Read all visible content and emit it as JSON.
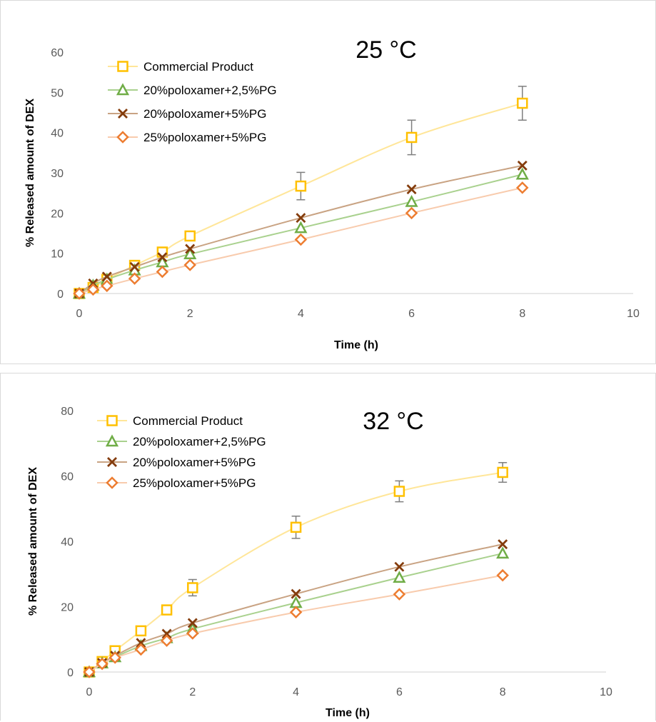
{
  "chart_data": [
    {
      "type": "line",
      "title": "25 °C",
      "xlabel": "Time (h)",
      "ylabel": "% Released amount of DEX",
      "xlim": [
        0,
        10
      ],
      "ylim": [
        0,
        60
      ],
      "x_ticks": [
        "0",
        "2",
        "4",
        "6",
        "8",
        "10"
      ],
      "y_ticks": [
        "0",
        "10",
        "20",
        "30",
        "40",
        "50",
        "60"
      ],
      "legend_position": "top-left",
      "grid": false,
      "series": [
        {
          "name": "Commercial Product",
          "marker": "square",
          "color": "#FFC000",
          "line_color": "#FFE699",
          "x": [
            0,
            0.25,
            0.5,
            1,
            1.5,
            2,
            4,
            6,
            8
          ],
          "y": [
            0,
            1.5,
            3.5,
            7,
            10.3,
            14.3,
            26.7,
            38.8,
            47.3
          ],
          "error": [
            0,
            0,
            0,
            0,
            0,
            0.5,
            3.4,
            4.3,
            4.2
          ]
        },
        {
          "name": "20%poloxamer+2,5%PG",
          "marker": "triangle",
          "color": "#70AD47",
          "line_color": "#A9D18E",
          "x": [
            0,
            0.25,
            0.5,
            1,
            1.5,
            2,
            4,
            6,
            8
          ],
          "y": [
            0,
            2,
            3.5,
            5.8,
            7.8,
            9.8,
            16.3,
            22.8,
            29.6
          ],
          "error": [
            0,
            0,
            0,
            0,
            0,
            0,
            0,
            0,
            0
          ]
        },
        {
          "name": "20%poloxamer+5%PG",
          "marker": "x",
          "color": "#843C0C",
          "line_color": "#C9A383",
          "x": [
            0,
            0.25,
            0.5,
            1,
            1.5,
            2,
            4,
            6,
            8
          ],
          "y": [
            0,
            2.5,
            4.2,
            6.6,
            9,
            11.1,
            18.8,
            25.9,
            31.8
          ],
          "error": [
            0,
            0,
            0,
            0,
            0,
            0,
            0,
            0,
            0
          ]
        },
        {
          "name": "25%poloxamer+5%PG",
          "marker": "diamond",
          "color": "#ED7D31",
          "line_color": "#F8CBAD",
          "x": [
            0,
            0.25,
            0.5,
            1,
            1.5,
            2,
            4,
            6,
            8
          ],
          "y": [
            0,
            1,
            1.9,
            3.7,
            5.4,
            7.1,
            13.4,
            20,
            26.3
          ],
          "error": [
            0,
            0,
            0,
            0,
            0,
            0,
            0,
            0,
            0
          ]
        }
      ]
    },
    {
      "type": "line",
      "title": "32 °C",
      "xlabel": "Time (h)",
      "ylabel": "% Released amount of DEX",
      "xlim": [
        0,
        10
      ],
      "ylim": [
        0,
        80
      ],
      "x_ticks": [
        "0",
        "2",
        "4",
        "6",
        "8",
        "10"
      ],
      "y_ticks": [
        "0",
        "20",
        "40",
        "60",
        "80"
      ],
      "legend_position": "top-left",
      "grid": false,
      "series": [
        {
          "name": "Commercial Product",
          "marker": "square",
          "color": "#FFC000",
          "line_color": "#FFE699",
          "x": [
            0,
            0.25,
            0.5,
            1,
            1.5,
            2,
            4,
            6,
            8
          ],
          "y": [
            0,
            3.2,
            6.5,
            12.6,
            19,
            25.8,
            44.3,
            55.3,
            61.1
          ],
          "error": [
            0,
            0,
            0,
            0,
            0,
            2.5,
            3.4,
            3.2,
            3
          ]
        },
        {
          "name": "20%poloxamer+2,5%PG",
          "marker": "triangle",
          "color": "#70AD47",
          "line_color": "#A9D18E",
          "x": [
            0,
            0.25,
            0.5,
            1,
            1.5,
            2,
            4,
            6,
            8
          ],
          "y": [
            0,
            2.7,
            4.6,
            8,
            10.4,
            13.2,
            21.2,
            28.9,
            36.3
          ],
          "error": [
            0,
            0,
            0,
            0,
            0,
            0,
            0,
            0,
            0
          ]
        },
        {
          "name": "20%poloxamer+5%PG",
          "marker": "x",
          "color": "#843C0C",
          "line_color": "#C9A383",
          "x": [
            0,
            0.25,
            0.5,
            1,
            1.5,
            2,
            4,
            6,
            8
          ],
          "y": [
            0,
            2.8,
            5,
            8.9,
            11.7,
            15,
            23.9,
            32.2,
            39.1
          ],
          "error": [
            0,
            0,
            0,
            0,
            0,
            0,
            0,
            0,
            0
          ]
        },
        {
          "name": "25%poloxamer+5%PG",
          "marker": "diamond",
          "color": "#ED7D31",
          "line_color": "#F8CBAD",
          "x": [
            0,
            0.25,
            0.5,
            1,
            1.5,
            2,
            4,
            6,
            8
          ],
          "y": [
            0,
            2.5,
            4.4,
            6.9,
            9.6,
            11.8,
            18.3,
            23.8,
            29.6
          ],
          "error": [
            0,
            0,
            0,
            0,
            0,
            0,
            0,
            0,
            0
          ]
        }
      ]
    }
  ]
}
